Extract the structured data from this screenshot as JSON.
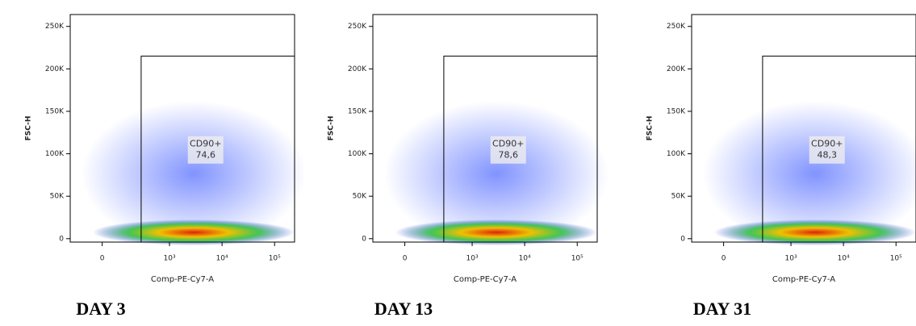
{
  "chart_data": [
    {
      "type": "scatter",
      "title": "DAY 3",
      "x_label": "Comp-PE-Cy7-A",
      "y_label": "FSC-H",
      "xscale": "biex",
      "xlim": [
        -200,
        240000
      ],
      "ylim": [
        -4000,
        264000
      ],
      "xticks": [
        0,
        {
          "value": 1000,
          "label": "10³"
        },
        {
          "value": 10000,
          "label": "10⁴"
        },
        {
          "value": 100000,
          "label": "10⁵"
        }
      ],
      "yticks": [
        0,
        {
          "value": 50000,
          "label": "50K"
        },
        {
          "value": 100000,
          "label": "100K"
        },
        {
          "value": 150000,
          "label": "150K"
        },
        {
          "value": 200000,
          "label": "200K"
        },
        {
          "value": 250000,
          "label": "250K"
        }
      ],
      "gate": {
        "name": "CD90+",
        "value": 74.6,
        "value_label": "74,6",
        "x": [
          280,
          240000
        ],
        "y": [
          -4000,
          215000
        ]
      }
    },
    {
      "type": "scatter",
      "title": "DAY 13",
      "x_label": "Comp-PE-Cy7-A",
      "y_label": "FSC-H",
      "xscale": "biex",
      "xlim": [
        -200,
        240000
      ],
      "ylim": [
        -4000,
        264000
      ],
      "xticks": [
        0,
        {
          "value": 1000,
          "label": "10³"
        },
        {
          "value": 10000,
          "label": "10⁴"
        },
        {
          "value": 100000,
          "label": "10⁵"
        }
      ],
      "yticks": [
        0,
        {
          "value": 50000,
          "label": "50K"
        },
        {
          "value": 100000,
          "label": "100K"
        },
        {
          "value": 150000,
          "label": "150K"
        },
        {
          "value": 200000,
          "label": "200K"
        },
        {
          "value": 250000,
          "label": "250K"
        }
      ],
      "gate": {
        "name": "CD90+",
        "value": 78.6,
        "value_label": "78,6",
        "x": [
          280,
          240000
        ],
        "y": [
          -4000,
          215000
        ]
      }
    },
    {
      "type": "scatter",
      "title": "DAY 31",
      "x_label": "Comp-PE-Cy7-A",
      "y_label": "FSC-H",
      "xscale": "biex",
      "xlim": [
        -200,
        240000
      ],
      "ylim": [
        -4000,
        264000
      ],
      "xticks": [
        0,
        {
          "value": 1000,
          "label": "10³"
        },
        {
          "value": 10000,
          "label": "10⁴"
        },
        {
          "value": 100000,
          "label": "10⁵"
        }
      ],
      "yticks": [
        0,
        {
          "value": 50000,
          "label": "50K"
        },
        {
          "value": 100000,
          "label": "100K"
        },
        {
          "value": 150000,
          "label": "150K"
        },
        {
          "value": 200000,
          "label": "200K"
        },
        {
          "value": 250000,
          "label": "250K"
        }
      ],
      "gate": {
        "name": "CD90+",
        "value": 48.3,
        "value_label": "48,3",
        "x": [
          280,
          240000
        ],
        "y": [
          -4000,
          215000
        ]
      }
    }
  ]
}
